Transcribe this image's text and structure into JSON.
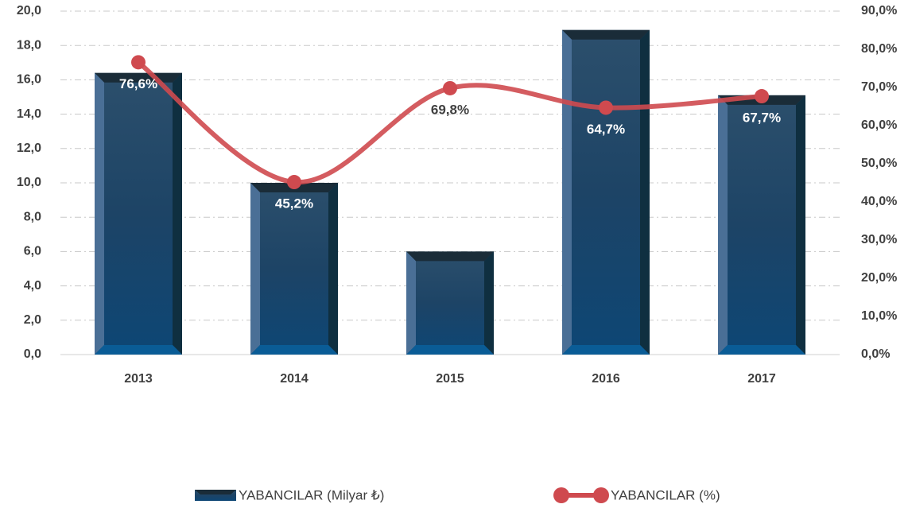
{
  "chart_data": {
    "type": "bar-line",
    "categories": [
      "2013",
      "2014",
      "2015",
      "2016",
      "2017"
    ],
    "series": [
      {
        "name": "YABANCILAR (Milyar ₺)",
        "type": "bar",
        "color": "#1d4f78",
        "values": [
          16.4,
          10.0,
          6.0,
          18.9,
          15.1
        ]
      },
      {
        "name": "YABANCILAR (%)",
        "type": "line",
        "axis": "y2",
        "color": "#cf4a4f",
        "values": [
          76.6,
          45.2,
          69.8,
          64.7,
          67.7
        ],
        "value_labels": [
          "76,6%",
          "45,2%",
          "69,8%",
          "64,7%",
          "67,7%"
        ]
      }
    ],
    "ylim": [
      0,
      20
    ],
    "yticks": [
      {
        "value": 0,
        "label": "0,0"
      },
      {
        "value": 2,
        "label": "2,0"
      },
      {
        "value": 4,
        "label": "4,0"
      },
      {
        "value": 6,
        "label": "6,0"
      },
      {
        "value": 8,
        "label": "8,0"
      },
      {
        "value": 10,
        "label": "10,0"
      },
      {
        "value": 12,
        "label": "12,0"
      },
      {
        "value": 14,
        "label": "14,0"
      },
      {
        "value": 16,
        "label": "16,0"
      },
      {
        "value": 18,
        "label": "18,0"
      },
      {
        "value": 20,
        "label": "20,0"
      }
    ],
    "y2lim": [
      0,
      90
    ],
    "y2ticks": [
      {
        "value": 0,
        "label": "0,0%"
      },
      {
        "value": 10,
        "label": "10,0%"
      },
      {
        "value": 20,
        "label": "20,0%"
      },
      {
        "value": 30,
        "label": "30,0%"
      },
      {
        "value": 40,
        "label": "40,0%"
      },
      {
        "value": 50,
        "label": "50,0%"
      },
      {
        "value": 60,
        "label": "60,0%"
      },
      {
        "value": 70,
        "label": "70,0%"
      },
      {
        "value": 80,
        "label": "80,0%"
      },
      {
        "value": 90,
        "label": "90,0%"
      }
    ],
    "grid": true,
    "legend": "bottom"
  }
}
